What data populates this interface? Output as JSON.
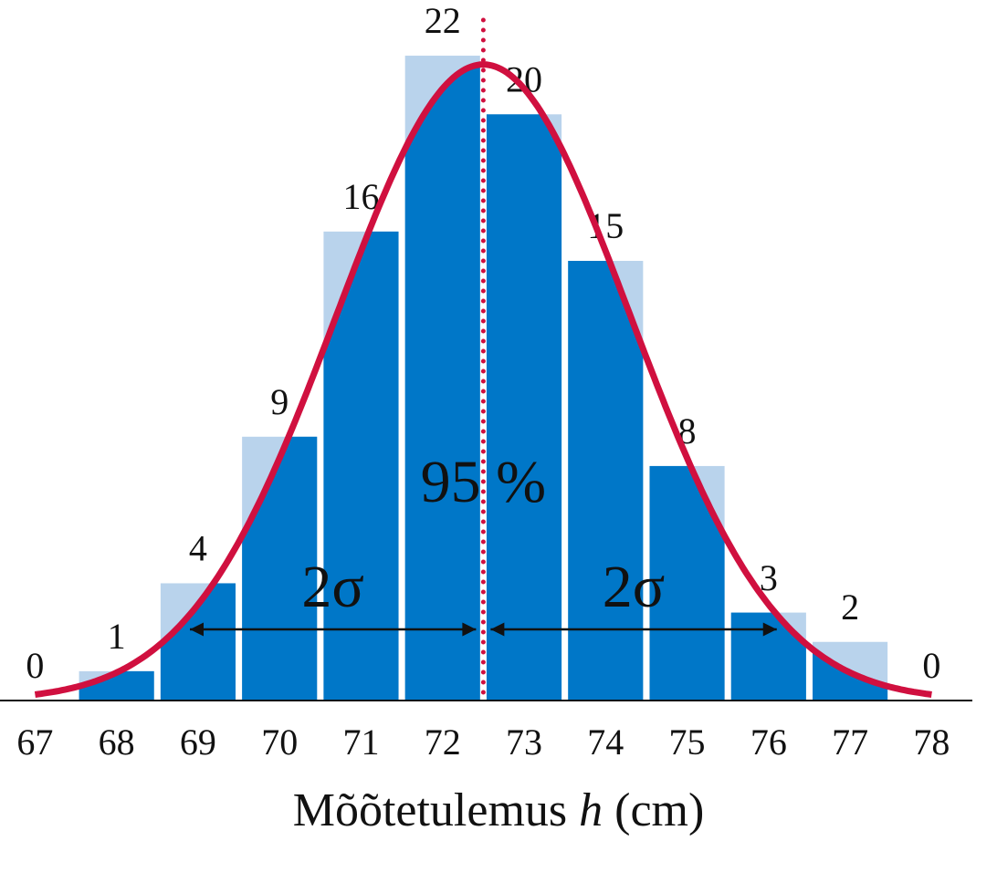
{
  "chart_data": {
    "type": "histogram",
    "x_label": [
      "Mõõtetulemus",
      "h",
      "(cm)"
    ],
    "categories": [
      67,
      68,
      69,
      70,
      71,
      72,
      73,
      74,
      75,
      76,
      77,
      78
    ],
    "values": [
      0,
      1,
      4,
      9,
      16,
      22,
      20,
      15,
      8,
      3,
      2,
      0
    ],
    "color": "#b9d3ec",
    "under_curve_color": "#0077c8",
    "xlim": [
      66.57,
      78.5
    ],
    "ylim": [
      0,
      23.9
    ],
    "curve": {
      "mean": 72.5,
      "sd": 1.8,
      "peak": 21.7,
      "color": "#d0103f"
    },
    "area_label": "95 %",
    "sigma_labels": [
      "2σ",
      "2σ"
    ]
  }
}
